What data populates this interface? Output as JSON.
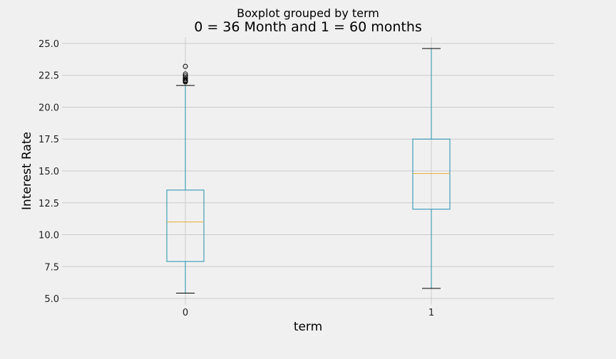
{
  "chart_data": {
    "type": "box",
    "suptitle": "Boxplot grouped by term",
    "title": "0 = 36 Month and 1 = 60 months",
    "xlabel": "term",
    "ylabel": "Interest Rate",
    "ylim": [
      4.5,
      25.5
    ],
    "yticks": [
      "5.0",
      "7.5",
      "10.0",
      "12.5",
      "15.0",
      "17.5",
      "20.0",
      "22.5",
      "25.0"
    ],
    "grid": true,
    "colors": {
      "box": "#1f8fb0",
      "median": "#e5ae38",
      "whisker_cap": "#000000",
      "grid": "#cbcbcb",
      "background": "#f0f0f0"
    },
    "categories": [
      "0",
      "1"
    ],
    "boxes": [
      {
        "label": "0",
        "whislo": 5.42,
        "q1": 7.9,
        "med": 11.0,
        "q3": 13.5,
        "whishi": 21.7,
        "fliers": [
          21.98,
          22.05,
          22.1,
          22.2,
          22.3,
          22.45,
          22.6,
          23.2
        ]
      },
      {
        "label": "1",
        "whislo": 5.79,
        "q1": 12.0,
        "med": 14.8,
        "q3": 17.5,
        "whishi": 24.6,
        "fliers": []
      }
    ]
  }
}
